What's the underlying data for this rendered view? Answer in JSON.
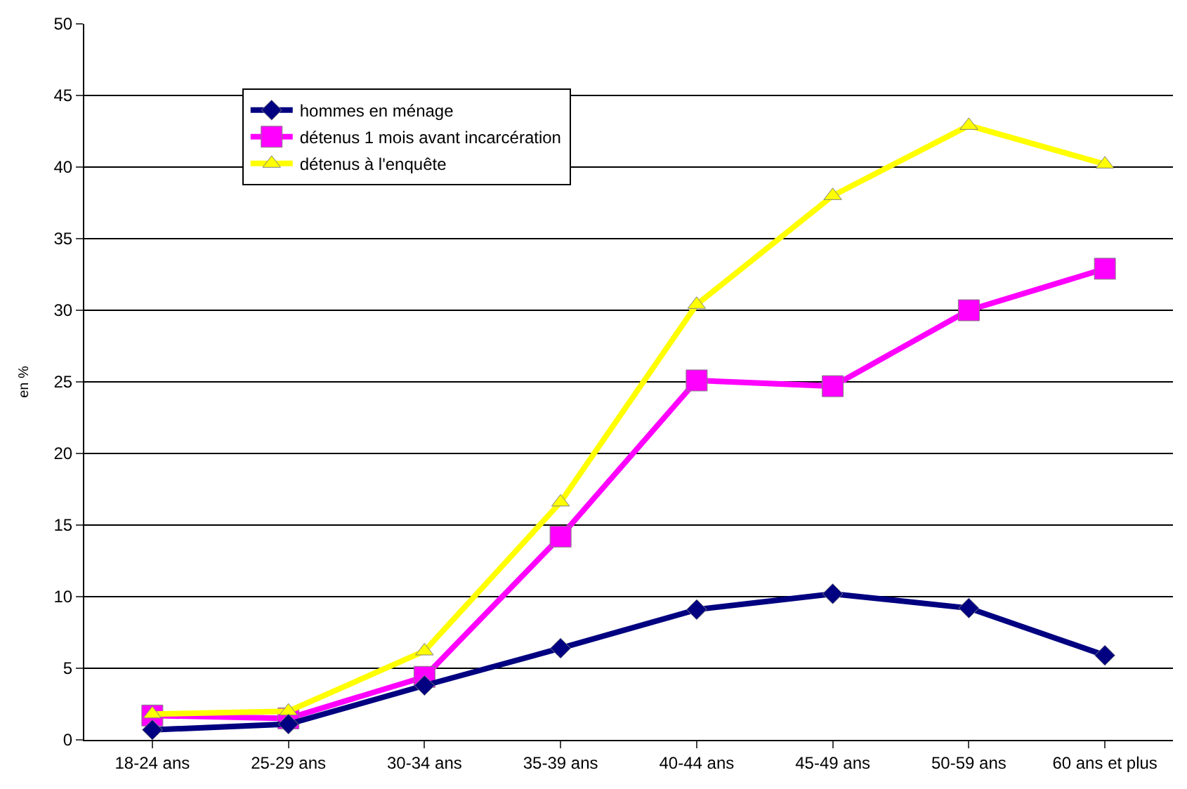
{
  "chart_data": {
    "type": "line",
    "ylabel": "en %",
    "categories": [
      "18-24 ans",
      "25-29 ans",
      "30-34 ans",
      "35-39 ans",
      "40-44 ans",
      "45-49 ans",
      "50-59 ans",
      "60 ans et plus"
    ],
    "series": [
      {
        "name": "hommes en ménage",
        "color": "#000080",
        "marker": "diamond",
        "values": [
          0.7,
          1.1,
          3.8,
          6.4,
          9.1,
          10.2,
          9.2,
          5.9
        ]
      },
      {
        "name": "détenus 1 mois avant incarcération",
        "color": "#ff00ff",
        "marker": "square",
        "values": [
          1.7,
          1.5,
          4.4,
          14.2,
          25.1,
          24.7,
          30.0,
          32.9
        ]
      },
      {
        "name": "détenus à l'enquête",
        "color": "#ffff00",
        "marker": "triangle",
        "values": [
          1.8,
          2.0,
          6.2,
          16.6,
          30.4,
          38.0,
          42.9,
          40.2
        ]
      }
    ],
    "ylim": [
      0,
      50
    ],
    "yticks": [
      0,
      5,
      10,
      15,
      20,
      25,
      30,
      35,
      40,
      45,
      50
    ],
    "grid": "y",
    "legend": "top left"
  }
}
